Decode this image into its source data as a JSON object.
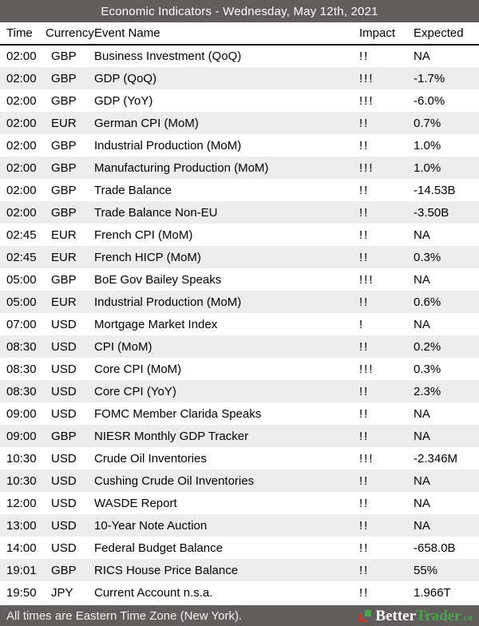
{
  "header": {
    "title": "Economic Indicators - Wednesday, May 12th, 2021"
  },
  "columns": [
    "Time",
    "Currency",
    "Event Name",
    "Impact",
    "Expected"
  ],
  "rows": [
    {
      "time": "02:00",
      "currency": "GBP",
      "event": "Business Investment (QoQ)",
      "impact": "!!",
      "expected": "NA"
    },
    {
      "time": "02:00",
      "currency": "GBP",
      "event": "GDP (QoQ)",
      "impact": "!!!",
      "expected": "-1.7%"
    },
    {
      "time": "02:00",
      "currency": "GBP",
      "event": "GDP (YoY)",
      "impact": "!!!",
      "expected": "-6.0%"
    },
    {
      "time": "02:00",
      "currency": "EUR",
      "event": "German CPI (MoM)",
      "impact": "!!",
      "expected": "0.7%"
    },
    {
      "time": "02:00",
      "currency": "GBP",
      "event": "Industrial Production (MoM)",
      "impact": "!!",
      "expected": "1.0%"
    },
    {
      "time": "02:00",
      "currency": "GBP",
      "event": "Manufacturing Production (MoM)",
      "impact": "!!!",
      "expected": "1.0%"
    },
    {
      "time": "02:00",
      "currency": "GBP",
      "event": "Trade Balance",
      "impact": "!!",
      "expected": "-14.53B"
    },
    {
      "time": "02:00",
      "currency": "GBP",
      "event": "Trade Balance Non-EU",
      "impact": "!!",
      "expected": "-3.50B"
    },
    {
      "time": "02:45",
      "currency": "EUR",
      "event": "French CPI (MoM)",
      "impact": "!!",
      "expected": "NA"
    },
    {
      "time": "02:45",
      "currency": "EUR",
      "event": "French HICP (MoM)",
      "impact": "!!",
      "expected": "0.3%"
    },
    {
      "time": "05:00",
      "currency": "GBP",
      "event": "BoE Gov Bailey Speaks",
      "impact": "!!!",
      "expected": "NA"
    },
    {
      "time": "05:00",
      "currency": "EUR",
      "event": "Industrial Production (MoM)",
      "impact": "!!",
      "expected": "0.6%"
    },
    {
      "time": "07:00",
      "currency": "USD",
      "event": "Mortgage Market Index",
      "impact": "!",
      "expected": "NA"
    },
    {
      "time": "08:30",
      "currency": "USD",
      "event": "CPI (MoM)",
      "impact": "!!",
      "expected": "0.2%"
    },
    {
      "time": "08:30",
      "currency": "USD",
      "event": "Core CPI (MoM)",
      "impact": "!!!",
      "expected": "0.3%"
    },
    {
      "time": "08:30",
      "currency": "USD",
      "event": "Core CPI (YoY)",
      "impact": "!!",
      "expected": "2.3%"
    },
    {
      "time": "09:00",
      "currency": "USD",
      "event": "FOMC Member Clarida Speaks",
      "impact": "!!",
      "expected": "NA"
    },
    {
      "time": "09:00",
      "currency": "GBP",
      "event": "NIESR Monthly GDP Tracker",
      "impact": "!!",
      "expected": "NA"
    },
    {
      "time": "10:30",
      "currency": "USD",
      "event": "Crude Oil Inventories",
      "impact": "!!!",
      "expected": "-2.346M"
    },
    {
      "time": "10:30",
      "currency": "USD",
      "event": "Cushing Crude Oil Inventories",
      "impact": "!!",
      "expected": "NA"
    },
    {
      "time": "12:00",
      "currency": "USD",
      "event": "WASDE Report",
      "impact": "!!",
      "expected": "NA"
    },
    {
      "time": "13:00",
      "currency": "USD",
      "event": "10-Year Note Auction",
      "impact": "!!",
      "expected": "NA"
    },
    {
      "time": "14:00",
      "currency": "USD",
      "event": "Federal Budget Balance",
      "impact": "!!",
      "expected": "-658.0B"
    },
    {
      "time": "19:01",
      "currency": "GBP",
      "event": "RICS House Price Balance",
      "impact": "!!",
      "expected": "55%"
    },
    {
      "time": "19:50",
      "currency": "JPY",
      "event": "Current Account n.s.a.",
      "impact": "!!",
      "expected": "1.966T"
    }
  ],
  "footer": {
    "note": "All times are Eastern Time Zone (New York).",
    "brand_better": "Better",
    "brand_trader": "Trader",
    "brand_tld": ".co"
  },
  "colors": {
    "bar_bg": "#615d5c",
    "stripe": "#ededed",
    "text": "#000000",
    "bar_text": "#ffffff",
    "logo_green": "#4ba64b",
    "logo_red": "#c43a2f"
  }
}
